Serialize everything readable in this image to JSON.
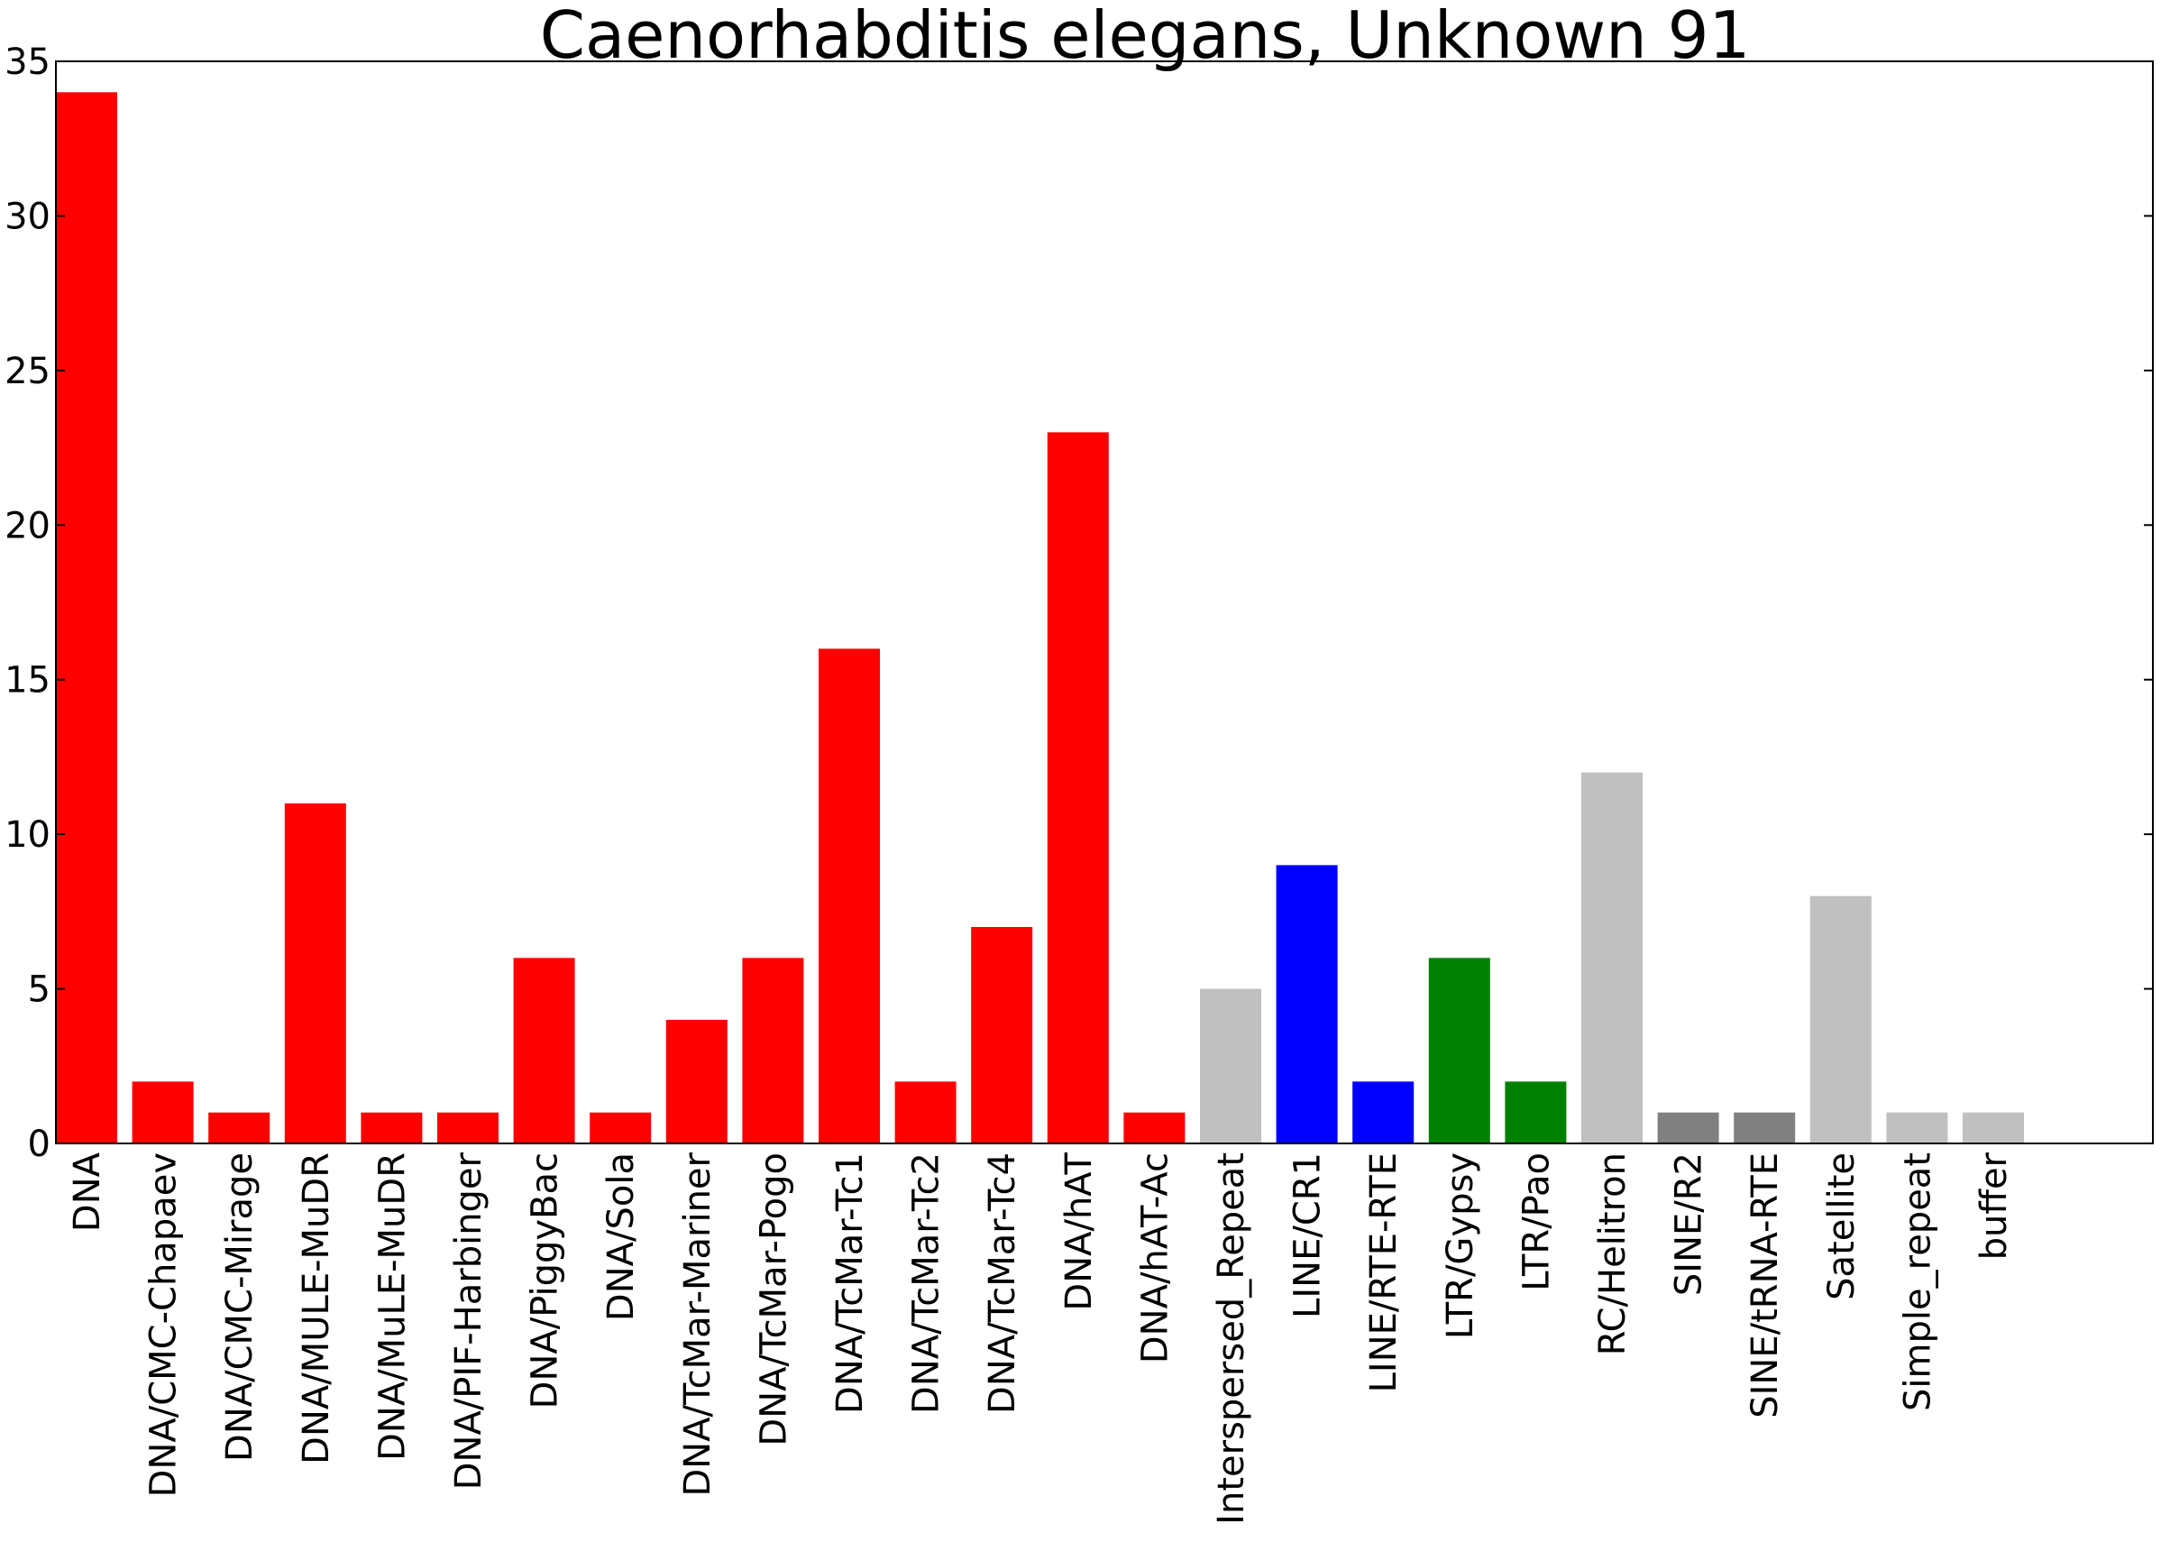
{
  "chart_data": {
    "type": "bar",
    "title": "Caenorhabditis elegans, Unknown 91",
    "xlabel": "",
    "ylabel": "",
    "ylim": [
      0,
      35
    ],
    "yticks": [
      0,
      5,
      10,
      15,
      20,
      25,
      30,
      35
    ],
    "grid": false,
    "legend": "none",
    "categories": [
      "DNA",
      "DNA/CMC-Chapaev",
      "DNA/CMC-Mirage",
      "DNA/MULE-MuDR",
      "DNA/MuLE-MuDR",
      "DNA/PIF-Harbinger",
      "DNA/PiggyBac",
      "DNA/Sola",
      "DNA/TcMar-Mariner",
      "DNA/TcMar-Pogo",
      "DNA/TcMar-Tc1",
      "DNA/TcMar-Tc2",
      "DNA/TcMar-Tc4",
      "DNA/hAT",
      "DNA/hAT-Ac",
      "Interspersed_Repeat",
      "LINE/CR1",
      "LINE/RTE-RTE",
      "LTR/Gypsy",
      "LTR/Pao",
      "RC/Helitron",
      "SINE/R2",
      "SINE/tRNA-RTE",
      "Satellite",
      "Simple_repeat",
      "buffer"
    ],
    "values": [
      34,
      2,
      1,
      11,
      1,
      1,
      6,
      1,
      4,
      6,
      16,
      2,
      7,
      23,
      1,
      5,
      9,
      2,
      6,
      2,
      12,
      1,
      1,
      8,
      1,
      1
    ],
    "colors": [
      "#ff0000",
      "#ff0000",
      "#ff0000",
      "#ff0000",
      "#ff0000",
      "#ff0000",
      "#ff0000",
      "#ff0000",
      "#ff0000",
      "#ff0000",
      "#ff0000",
      "#ff0000",
      "#ff0000",
      "#ff0000",
      "#ff0000",
      "#c0c0c0",
      "#0000ff",
      "#0000ff",
      "#008000",
      "#008000",
      "#c0c0c0",
      "#808080",
      "#808080",
      "#c0c0c0",
      "#c0c0c0",
      "#c0c0c0"
    ]
  }
}
